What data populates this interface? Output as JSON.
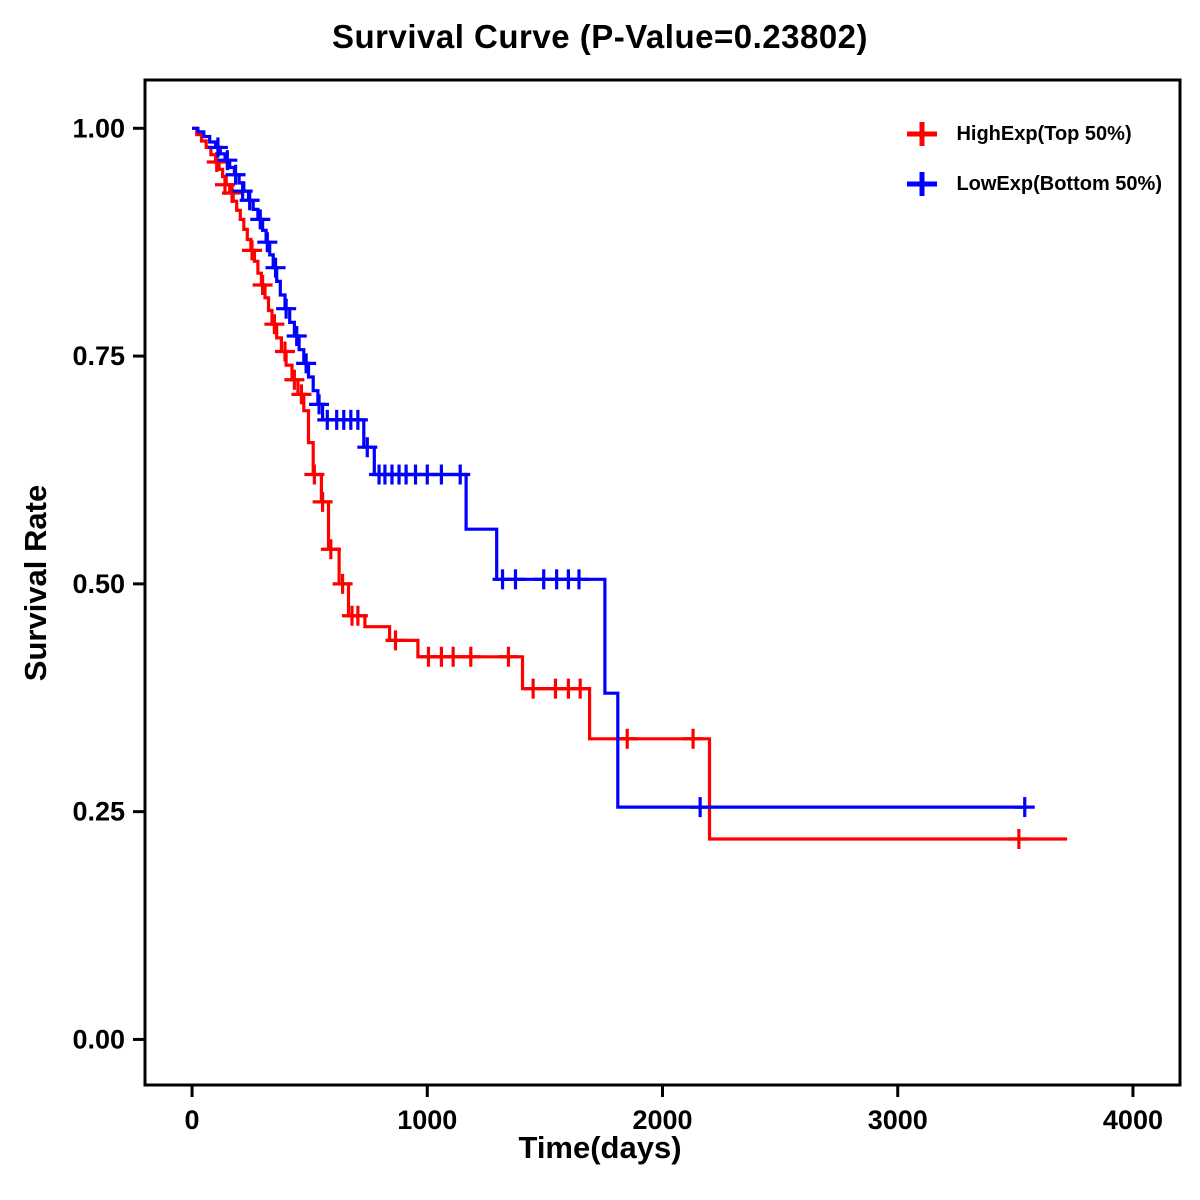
{
  "chart_data": {
    "type": "line",
    "subtype": "kaplan-meier-step",
    "title": "Survival Curve (P-Value=0.23802)",
    "xlabel": "Time(days)",
    "ylabel": "Survival Rate",
    "xlim": [
      -200,
      4200
    ],
    "ylim": [
      -0.05,
      1.053
    ],
    "xticks": [
      0,
      1000,
      2000,
      3000,
      4000
    ],
    "ytick_labels": [
      "0.00",
      "0.25",
      "0.50",
      "0.75",
      "1.00"
    ],
    "ytick_values": [
      0.0,
      0.25,
      0.5,
      0.75,
      1.0
    ],
    "grid": false,
    "legend_position": "top-right",
    "series": [
      {
        "name": "HighExp(Top 50%)",
        "color": "#FF0000",
        "steps": [
          [
            0,
            1.0
          ],
          [
            20,
            0.993
          ],
          [
            40,
            0.986
          ],
          [
            60,
            0.979
          ],
          [
            80,
            0.971
          ],
          [
            100,
            0.963
          ],
          [
            115,
            0.955
          ],
          [
            130,
            0.947
          ],
          [
            145,
            0.938
          ],
          [
            160,
            0.929
          ],
          [
            175,
            0.92
          ],
          [
            190,
            0.91
          ],
          [
            205,
            0.9
          ],
          [
            220,
            0.889
          ],
          [
            235,
            0.878
          ],
          [
            250,
            0.866
          ],
          [
            265,
            0.854
          ],
          [
            280,
            0.841
          ],
          [
            295,
            0.828
          ],
          [
            310,
            0.814
          ],
          [
            325,
            0.8
          ],
          [
            340,
            0.785
          ],
          [
            360,
            0.77
          ],
          [
            380,
            0.755
          ],
          [
            400,
            0.74
          ],
          [
            425,
            0.724
          ],
          [
            450,
            0.708
          ],
          [
            475,
            0.69
          ],
          [
            495,
            0.655
          ],
          [
            515,
            0.62
          ],
          [
            550,
            0.59
          ],
          [
            580,
            0.538
          ],
          [
            625,
            0.5
          ],
          [
            665,
            0.465
          ],
          [
            735,
            0.453
          ],
          [
            840,
            0.438
          ],
          [
            960,
            0.42
          ],
          [
            1405,
            0.385
          ],
          [
            1690,
            0.33
          ],
          [
            2200,
            0.22
          ],
          [
            3720,
            0.22
          ]
        ],
        "censors": [
          [
            105,
            0.963
          ],
          [
            140,
            0.938
          ],
          [
            170,
            0.929
          ],
          [
            255,
            0.866
          ],
          [
            300,
            0.828
          ],
          [
            350,
            0.785
          ],
          [
            395,
            0.755
          ],
          [
            435,
            0.724
          ],
          [
            465,
            0.708
          ],
          [
            520,
            0.62
          ],
          [
            555,
            0.59
          ],
          [
            590,
            0.538
          ],
          [
            640,
            0.5
          ],
          [
            680,
            0.465
          ],
          [
            705,
            0.465
          ],
          [
            865,
            0.438
          ],
          [
            1005,
            0.42
          ],
          [
            1060,
            0.42
          ],
          [
            1110,
            0.42
          ],
          [
            1185,
            0.42
          ],
          [
            1345,
            0.42
          ],
          [
            1450,
            0.385
          ],
          [
            1545,
            0.385
          ],
          [
            1600,
            0.385
          ],
          [
            1650,
            0.385
          ],
          [
            1850,
            0.33
          ],
          [
            2130,
            0.33
          ],
          [
            3515,
            0.22
          ]
        ]
      },
      {
        "name": "LowExp(Bottom 50%)",
        "color": "#0000FF",
        "steps": [
          [
            0,
            1.0
          ],
          [
            25,
            0.996
          ],
          [
            50,
            0.991
          ],
          [
            75,
            0.985
          ],
          [
            100,
            0.979
          ],
          [
            120,
            0.972
          ],
          [
            140,
            0.965
          ],
          [
            160,
            0.957
          ],
          [
            180,
            0.949
          ],
          [
            200,
            0.94
          ],
          [
            220,
            0.931
          ],
          [
            240,
            0.921
          ],
          [
            260,
            0.911
          ],
          [
            280,
            0.9
          ],
          [
            300,
            0.888
          ],
          [
            315,
            0.875
          ],
          [
            330,
            0.861
          ],
          [
            345,
            0.847
          ],
          [
            360,
            0.832
          ],
          [
            375,
            0.817
          ],
          [
            395,
            0.802
          ],
          [
            415,
            0.787
          ],
          [
            435,
            0.772
          ],
          [
            455,
            0.757
          ],
          [
            475,
            0.742
          ],
          [
            495,
            0.727
          ],
          [
            515,
            0.712
          ],
          [
            535,
            0.697
          ],
          [
            555,
            0.68
          ],
          [
            730,
            0.65
          ],
          [
            775,
            0.62
          ],
          [
            1165,
            0.56
          ],
          [
            1295,
            0.505
          ],
          [
            1755,
            0.38
          ],
          [
            1810,
            0.255
          ],
          [
            3550,
            0.255
          ]
        ],
        "censors": [
          [
            110,
            0.979
          ],
          [
            150,
            0.965
          ],
          [
            185,
            0.949
          ],
          [
            215,
            0.931
          ],
          [
            245,
            0.921
          ],
          [
            290,
            0.9
          ],
          [
            320,
            0.875
          ],
          [
            355,
            0.847
          ],
          [
            400,
            0.802
          ],
          [
            445,
            0.772
          ],
          [
            485,
            0.742
          ],
          [
            540,
            0.697
          ],
          [
            575,
            0.68
          ],
          [
            615,
            0.68
          ],
          [
            645,
            0.68
          ],
          [
            675,
            0.68
          ],
          [
            705,
            0.68
          ],
          [
            745,
            0.65
          ],
          [
            795,
            0.62
          ],
          [
            820,
            0.62
          ],
          [
            850,
            0.62
          ],
          [
            880,
            0.62
          ],
          [
            910,
            0.62
          ],
          [
            950,
            0.62
          ],
          [
            1000,
            0.62
          ],
          [
            1060,
            0.62
          ],
          [
            1140,
            0.62
          ],
          [
            1320,
            0.505
          ],
          [
            1375,
            0.505
          ],
          [
            1495,
            0.505
          ],
          [
            1550,
            0.505
          ],
          [
            1600,
            0.505
          ],
          [
            1645,
            0.505
          ],
          [
            2160,
            0.255
          ],
          [
            3540,
            0.255
          ]
        ]
      }
    ]
  }
}
